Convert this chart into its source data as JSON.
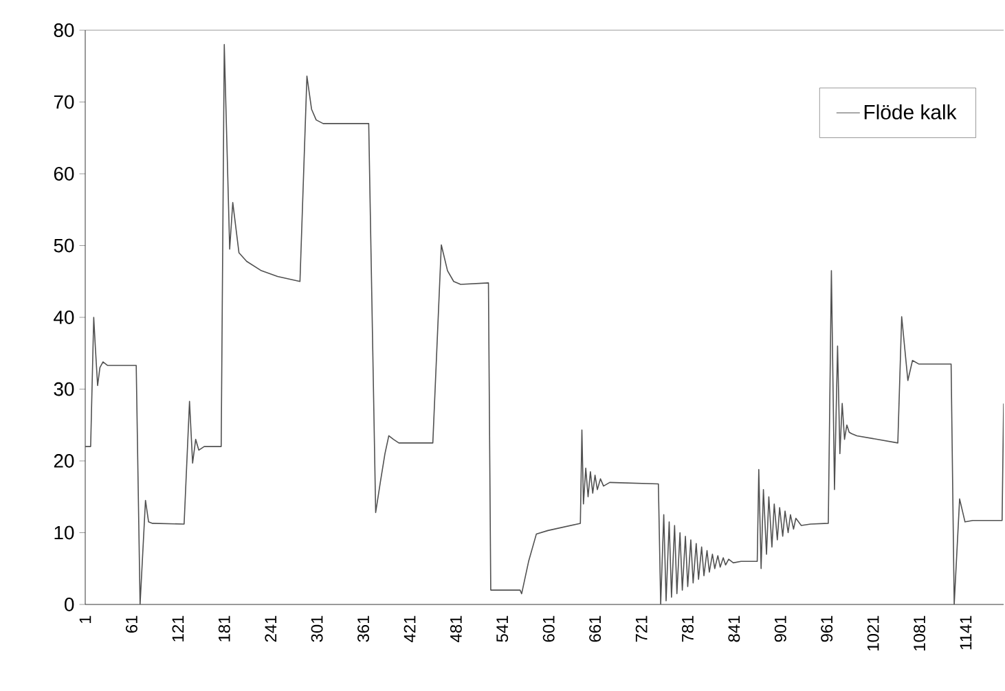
{
  "chart_data": {
    "type": "line",
    "xlim": [
      1,
      1190
    ],
    "ylim": [
      0,
      80
    ],
    "xticks": [
      1,
      61,
      121,
      181,
      241,
      301,
      361,
      421,
      481,
      541,
      601,
      661,
      721,
      781,
      841,
      901,
      961,
      1021,
      1081,
      1141
    ],
    "yticks": [
      0,
      10,
      20,
      30,
      40,
      50,
      60,
      70,
      80
    ],
    "legend": "top right",
    "grid": false,
    "marker": "none",
    "line_style": "solid",
    "series": [
      {
        "name": "Flöde kalk",
        "color": "#505050",
        "x": [
          1,
          8,
          12,
          14,
          17,
          20,
          24,
          30,
          67,
          72,
          79,
          83,
          88,
          129,
          136,
          140,
          144,
          148,
          155,
          177,
          181,
          188,
          192,
          200,
          210,
          229,
          250,
          279,
          288,
          294,
          300,
          309,
          368,
          377,
          383,
          389,
          394,
          400,
          407,
          451,
          462,
          470,
          478,
          487,
          523,
          526,
          564,
          566,
          575,
          585,
          600,
          642,
          644,
          646,
          649,
          652,
          655,
          658,
          661,
          664,
          668,
          672,
          680,
          743,
          746,
          750,
          753,
          757,
          760,
          764,
          767,
          771,
          774,
          778,
          781,
          785,
          788,
          792,
          795,
          799,
          802,
          806,
          809,
          813,
          816,
          820,
          823,
          827,
          830,
          834,
          840,
          850,
          871,
          873,
          876,
          879,
          883,
          886,
          890,
          893,
          897,
          900,
          904,
          907,
          911,
          914,
          918,
          921,
          928,
          940,
          963,
          967,
          971,
          975,
          978,
          981,
          984,
          987,
          990,
          993,
          1000,
          1053,
          1058,
          1066,
          1072,
          1080,
          1122,
          1126,
          1133,
          1140,
          1150,
          1188,
          1190
        ],
        "values": [
          22,
          22,
          40,
          36,
          30.5,
          33,
          33.8,
          33.3,
          33.3,
          0,
          14.5,
          11.5,
          11.3,
          11.2,
          28.3,
          19.7,
          23,
          21.5,
          22,
          22,
          78,
          49.5,
          56,
          49,
          47.8,
          46.5,
          45.7,
          45,
          73.6,
          69,
          67.5,
          67,
          67,
          12.8,
          17,
          21,
          23.5,
          23,
          22.5,
          22.5,
          50.1,
          46.5,
          45,
          44.6,
          44.8,
          2,
          2,
          1.5,
          6,
          9.8,
          10.3,
          11.3,
          24.3,
          14,
          19,
          15,
          18.5,
          15.5,
          18,
          16,
          17.5,
          16.5,
          17,
          16.8,
          0,
          12.5,
          0.5,
          11.5,
          1,
          11,
          1.5,
          10,
          2,
          9.5,
          2.5,
          9,
          3,
          8.5,
          3.5,
          8,
          4,
          7.5,
          4.5,
          7,
          5,
          6.8,
          5.2,
          6.5,
          5.5,
          6.3,
          5.8,
          6,
          6,
          18.8,
          5,
          16,
          7,
          15,
          8,
          14,
          9,
          13.5,
          9.5,
          13,
          10,
          12.5,
          10.5,
          12,
          11,
          11.2,
          11.3,
          46.5,
          16,
          36,
          21,
          28,
          23,
          25,
          24,
          23.8,
          23.5,
          22.5,
          40.1,
          31.2,
          34,
          33.5,
          33.5,
          0,
          14.7,
          11.5,
          11.7,
          11.7,
          28
        ]
      }
    ]
  }
}
